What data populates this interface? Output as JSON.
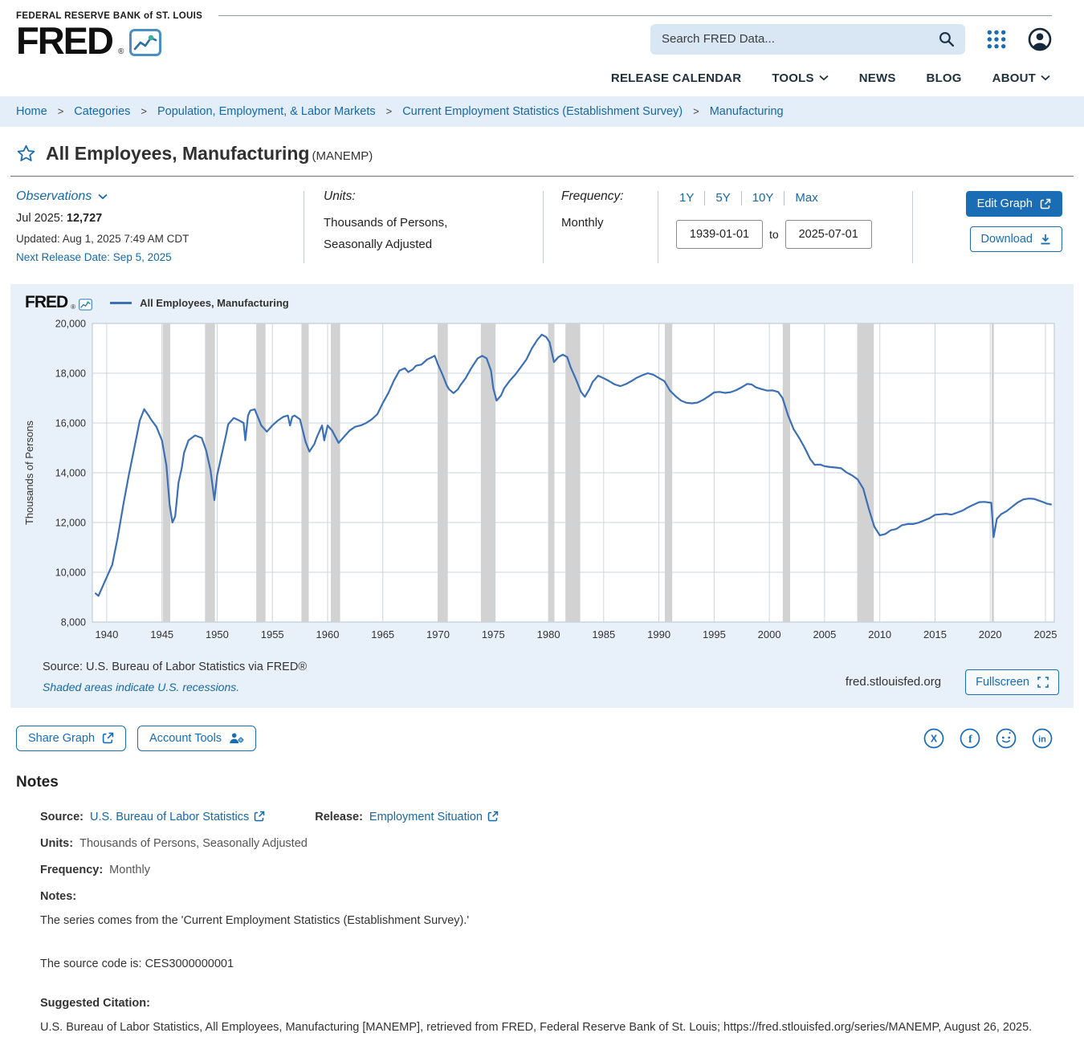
{
  "header": {
    "bank_name": "FEDERAL RESERVE BANK of ST. LOUIS",
    "logo_text": "FRED",
    "logo_reg": "®",
    "search_placeholder": "Search FRED Data...",
    "nav": [
      {
        "label": "RELEASE CALENDAR"
      },
      {
        "label": "TOOLS"
      },
      {
        "label": "NEWS"
      },
      {
        "label": "BLOG"
      },
      {
        "label": "ABOUT"
      }
    ]
  },
  "breadcrumb": {
    "separator": ">",
    "items": [
      "Home",
      "Categories",
      "Population, Employment, & Labor Markets",
      "Current Employment Statistics (Establishment Survey)",
      "Manufacturing"
    ]
  },
  "series": {
    "title": "All Employees, Manufacturing",
    "id_label": "(MANEMP)"
  },
  "meta": {
    "observations_label": "Observations",
    "latest_label": "Jul 2025:",
    "latest_value": "12,727",
    "updated": "Updated: Aug 1, 2025 7:49 AM CDT",
    "next_release": "Next Release Date: Sep 5, 2025",
    "units_label": "Units:",
    "units_line1": "Thousands of Persons,",
    "units_line2": "Seasonally Adjusted",
    "frequency_label": "Frequency:",
    "frequency_value": "Monthly",
    "ranges": [
      "1Y",
      "5Y",
      "10Y",
      "Max"
    ],
    "date_start": "1939-01-01",
    "date_to_label": "to",
    "date_end": "2025-07-01",
    "edit_graph_label": "Edit Graph",
    "download_label": "Download"
  },
  "chart_area": {
    "logo_text": "FRED",
    "logo_reg": "®",
    "legend_label": "All Employees, Manufacturing",
    "source_text": "Source: U.S. Bureau of Labor Statistics via FRED®",
    "recession_note": "Shaded areas indicate U.S. recessions.",
    "site_url": "fred.stlouisfed.org",
    "fullscreen_label": "Fullscreen"
  },
  "actions": {
    "share_label": "Share Graph",
    "account_tools_label": "Account Tools"
  },
  "notes": {
    "heading": "Notes",
    "source_label": "Source:",
    "source_link": "U.S. Bureau of Labor Statistics",
    "release_label": "Release:",
    "release_link": "Employment Situation",
    "units_label": "Units:",
    "units_value": "Thousands of Persons, Seasonally Adjusted",
    "frequency_label": "Frequency:",
    "frequency_value": "Monthly",
    "notes_label": "Notes:",
    "note_line1": "The series comes from the 'Current Employment Statistics (Establishment Survey).'",
    "note_line2": "The source code is: CES3000000001",
    "citation_label": "Suggested Citation:",
    "citation_text": "U.S. Bureau of Labor Statistics, All Employees, Manufacturing [MANEMP], retrieved from FRED, Federal Reserve Bank of St. Louis; https://fred.stlouisfed.org/series/MANEMP, August 26, 2025."
  },
  "chart_data": {
    "type": "line",
    "title": "All Employees, Manufacturing",
    "ylabel": "Thousands of Persons",
    "units": "Thousands of Persons",
    "frequency": "Monthly",
    "legend": [
      "All Employees, Manufacturing"
    ],
    "x_range": [
      1938.7,
      2025.8
    ],
    "y_range": [
      8000,
      20000
    ],
    "y_ticks": [
      8000,
      10000,
      12000,
      14000,
      16000,
      18000,
      20000
    ],
    "x_ticks": [
      1940,
      1945,
      1950,
      1955,
      1960,
      1965,
      1970,
      1975,
      1980,
      1985,
      1990,
      1995,
      2000,
      2005,
      2010,
      2015,
      2020,
      2025
    ],
    "line_color": "#3b6fb6",
    "recession_color": "#d2d2d2",
    "grid_color": "#ccd4da",
    "plot_border_color": "#b9c3cc",
    "recessions": [
      [
        1945.08,
        1945.75
      ],
      [
        1948.9,
        1949.8
      ],
      [
        1953.54,
        1954.38
      ],
      [
        1957.63,
        1958.29
      ],
      [
        1960.29,
        1961.13
      ],
      [
        1969.96,
        1970.88
      ],
      [
        1973.88,
        1975.21
      ],
      [
        1980.0,
        1980.54
      ],
      [
        1981.54,
        1982.88
      ],
      [
        1990.54,
        1991.21
      ],
      [
        2001.21,
        2001.88
      ],
      [
        2007.96,
        2009.46
      ],
      [
        2020.13,
        2020.33
      ]
    ],
    "points": [
      [
        1939.0,
        9150
      ],
      [
        1939.25,
        9050
      ],
      [
        1939.6,
        9400
      ],
      [
        1940.0,
        9800
      ],
      [
        1940.5,
        10300
      ],
      [
        1941.0,
        11400
      ],
      [
        1941.5,
        12700
      ],
      [
        1942.0,
        13900
      ],
      [
        1942.5,
        15000
      ],
      [
        1943.0,
        16100
      ],
      [
        1943.4,
        16550
      ],
      [
        1943.8,
        16300
      ],
      [
        1944.0,
        16150
      ],
      [
        1944.5,
        15850
      ],
      [
        1945.0,
        15300
      ],
      [
        1945.4,
        14300
      ],
      [
        1945.7,
        12700
      ],
      [
        1945.95,
        12000
      ],
      [
        1946.2,
        12250
      ],
      [
        1946.5,
        13600
      ],
      [
        1946.8,
        14200
      ],
      [
        1947.0,
        14800
      ],
      [
        1947.4,
        15300
      ],
      [
        1948.0,
        15500
      ],
      [
        1948.6,
        15400
      ],
      [
        1949.0,
        14900
      ],
      [
        1949.4,
        14100
      ],
      [
        1949.75,
        12900
      ],
      [
        1950.0,
        13900
      ],
      [
        1950.4,
        14700
      ],
      [
        1950.8,
        15500
      ],
      [
        1951.0,
        15950
      ],
      [
        1951.5,
        16200
      ],
      [
        1952.0,
        16100
      ],
      [
        1952.4,
        16000
      ],
      [
        1952.55,
        15300
      ],
      [
        1952.8,
        16300
      ],
      [
        1953.0,
        16500
      ],
      [
        1953.4,
        16550
      ],
      [
        1954.0,
        15900
      ],
      [
        1954.5,
        15650
      ],
      [
        1955.0,
        15900
      ],
      [
        1955.5,
        16100
      ],
      [
        1956.0,
        16250
      ],
      [
        1956.4,
        16300
      ],
      [
        1956.6,
        15900
      ],
      [
        1956.8,
        16250
      ],
      [
        1957.0,
        16300
      ],
      [
        1957.5,
        16150
      ],
      [
        1958.0,
        15250
      ],
      [
        1958.35,
        14850
      ],
      [
        1958.8,
        15150
      ],
      [
        1959.0,
        15400
      ],
      [
        1959.5,
        15900
      ],
      [
        1959.7,
        15300
      ],
      [
        1960.0,
        15900
      ],
      [
        1960.4,
        15700
      ],
      [
        1961.0,
        15200
      ],
      [
        1961.5,
        15450
      ],
      [
        1962.0,
        15700
      ],
      [
        1962.5,
        15850
      ],
      [
        1963.0,
        15900
      ],
      [
        1963.5,
        16000
      ],
      [
        1964.0,
        16150
      ],
      [
        1964.5,
        16350
      ],
      [
        1965.0,
        16800
      ],
      [
        1965.5,
        17200
      ],
      [
        1966.0,
        17700
      ],
      [
        1966.5,
        18100
      ],
      [
        1967.0,
        18200
      ],
      [
        1967.3,
        18050
      ],
      [
        1967.7,
        18150
      ],
      [
        1968.0,
        18300
      ],
      [
        1968.5,
        18350
      ],
      [
        1969.0,
        18550
      ],
      [
        1969.7,
        18700
      ],
      [
        1970.0,
        18350
      ],
      [
        1970.4,
        17950
      ],
      [
        1970.8,
        17500
      ],
      [
        1971.0,
        17350
      ],
      [
        1971.4,
        17200
      ],
      [
        1971.8,
        17350
      ],
      [
        1972.0,
        17500
      ],
      [
        1972.5,
        17800
      ],
      [
        1973.0,
        18200
      ],
      [
        1973.6,
        18600
      ],
      [
        1974.0,
        18700
      ],
      [
        1974.4,
        18600
      ],
      [
        1974.8,
        18100
      ],
      [
        1975.0,
        17400
      ],
      [
        1975.3,
        16900
      ],
      [
        1975.7,
        17100
      ],
      [
        1976.0,
        17400
      ],
      [
        1976.5,
        17700
      ],
      [
        1977.0,
        17950
      ],
      [
        1977.5,
        18250
      ],
      [
        1978.0,
        18550
      ],
      [
        1978.5,
        19000
      ],
      [
        1979.0,
        19350
      ],
      [
        1979.4,
        19550
      ],
      [
        1979.8,
        19450
      ],
      [
        1980.1,
        19250
      ],
      [
        1980.5,
        18450
      ],
      [
        1980.9,
        18650
      ],
      [
        1981.3,
        18750
      ],
      [
        1981.7,
        18650
      ],
      [
        1982.0,
        18250
      ],
      [
        1982.5,
        17750
      ],
      [
        1982.95,
        17250
      ],
      [
        1983.3,
        17050
      ],
      [
        1983.7,
        17350
      ],
      [
        1984.0,
        17650
      ],
      [
        1984.5,
        17900
      ],
      [
        1985.0,
        17800
      ],
      [
        1985.5,
        17680
      ],
      [
        1986.0,
        17550
      ],
      [
        1986.5,
        17480
      ],
      [
        1987.0,
        17560
      ],
      [
        1987.5,
        17680
      ],
      [
        1988.0,
        17820
      ],
      [
        1988.5,
        17920
      ],
      [
        1989.0,
        18000
      ],
      [
        1989.5,
        17940
      ],
      [
        1990.0,
        17810
      ],
      [
        1990.5,
        17680
      ],
      [
        1991.0,
        17300
      ],
      [
        1991.5,
        17080
      ],
      [
        1992.0,
        16900
      ],
      [
        1992.5,
        16810
      ],
      [
        1993.0,
        16790
      ],
      [
        1993.5,
        16820
      ],
      [
        1994.0,
        16930
      ],
      [
        1994.5,
        17070
      ],
      [
        1995.0,
        17230
      ],
      [
        1995.5,
        17250
      ],
      [
        1996.0,
        17210
      ],
      [
        1996.5,
        17240
      ],
      [
        1997.0,
        17320
      ],
      [
        1997.5,
        17440
      ],
      [
        1998.0,
        17570
      ],
      [
        1998.4,
        17550
      ],
      [
        1998.8,
        17430
      ],
      [
        1999.3,
        17360
      ],
      [
        1999.8,
        17300
      ],
      [
        2000.3,
        17310
      ],
      [
        2000.8,
        17250
      ],
      [
        2001.2,
        17000
      ],
      [
        2001.7,
        16300
      ],
      [
        2002.2,
        15750
      ],
      [
        2002.7,
        15400
      ],
      [
        2003.2,
        15000
      ],
      [
        2003.7,
        14550
      ],
      [
        2004.1,
        14320
      ],
      [
        2004.6,
        14330
      ],
      [
        2005.0,
        14260
      ],
      [
        2005.5,
        14230
      ],
      [
        2006.0,
        14210
      ],
      [
        2006.5,
        14180
      ],
      [
        2007.0,
        14010
      ],
      [
        2007.5,
        13890
      ],
      [
        2008.0,
        13730
      ],
      [
        2008.5,
        13360
      ],
      [
        2009.0,
        12560
      ],
      [
        2009.5,
        11840
      ],
      [
        2010.0,
        11480
      ],
      [
        2010.5,
        11540
      ],
      [
        2011.0,
        11690
      ],
      [
        2011.5,
        11740
      ],
      [
        2012.0,
        11890
      ],
      [
        2012.5,
        11940
      ],
      [
        2013.0,
        11940
      ],
      [
        2013.5,
        11990
      ],
      [
        2014.0,
        12080
      ],
      [
        2014.5,
        12170
      ],
      [
        2015.0,
        12310
      ],
      [
        2015.5,
        12330
      ],
      [
        2016.0,
        12350
      ],
      [
        2016.5,
        12320
      ],
      [
        2017.0,
        12400
      ],
      [
        2017.5,
        12480
      ],
      [
        2018.0,
        12610
      ],
      [
        2018.5,
        12720
      ],
      [
        2019.0,
        12820
      ],
      [
        2019.5,
        12830
      ],
      [
        2020.1,
        12790
      ],
      [
        2020.3,
        11410
      ],
      [
        2020.6,
        12150
      ],
      [
        2021.0,
        12340
      ],
      [
        2021.5,
        12460
      ],
      [
        2022.0,
        12640
      ],
      [
        2022.5,
        12810
      ],
      [
        2023.0,
        12930
      ],
      [
        2023.5,
        12960
      ],
      [
        2024.0,
        12950
      ],
      [
        2024.4,
        12880
      ],
      [
        2024.8,
        12820
      ],
      [
        2025.1,
        12760
      ],
      [
        2025.5,
        12727
      ]
    ]
  }
}
